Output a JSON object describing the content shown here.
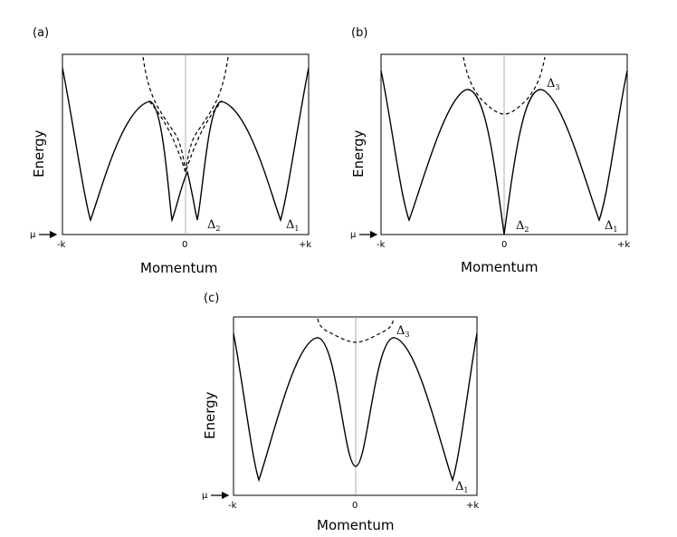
{
  "panels": [
    {
      "id": "a",
      "label": "(a)",
      "ylabel": "Energy",
      "xlabel": "Momentum",
      "mu_label": "μ",
      "x_ticks": [
        "-k",
        "0",
        "+k"
      ],
      "gap_labels": [
        {
          "sym": "Δ",
          "sub": "2"
        },
        {
          "sym": "Δ",
          "sub": "1"
        }
      ]
    },
    {
      "id": "b",
      "label": "(b)",
      "ylabel": "Energy",
      "xlabel": "Momentum",
      "mu_label": "μ",
      "x_ticks": [
        "-k",
        "0",
        "+k"
      ],
      "gap_labels": [
        {
          "sym": "Δ",
          "sub": "3"
        },
        {
          "sym": "Δ",
          "sub": "2"
        },
        {
          "sym": "Δ",
          "sub": "1"
        }
      ]
    },
    {
      "id": "c",
      "label": "(c)",
      "ylabel": "Energy",
      "xlabel": "Momentum",
      "mu_label": "μ",
      "x_ticks": [
        "-k",
        "0",
        "+k"
      ],
      "gap_labels": [
        {
          "sym": "Δ",
          "sub": "3"
        },
        {
          "sym": "Δ",
          "sub": "1"
        }
      ]
    }
  ],
  "colors": {
    "line": "#000000",
    "center_line": "#999999",
    "background": "#ffffff"
  }
}
